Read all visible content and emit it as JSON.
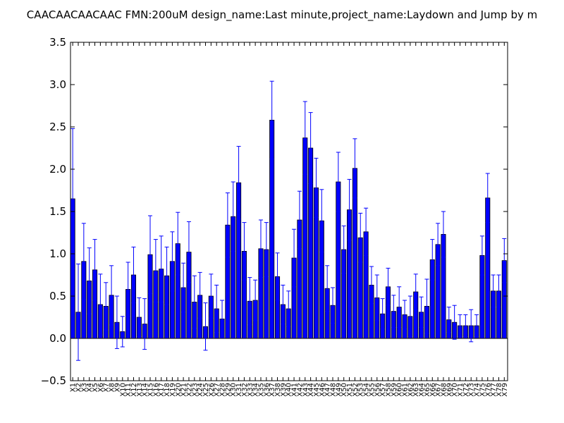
{
  "chart_data": {
    "type": "bar",
    "title": "CAACAACAACAAC  FMN:200uM  design_name:Last minute,project_name:Laydown and Jump by m",
    "xlabel": "",
    "ylabel": "",
    "ylim": [
      -0.5,
      3.5
    ],
    "yticks": [
      "−0.5",
      "0.0",
      "0.5",
      "1.0",
      "1.5",
      "2.0",
      "2.5",
      "3.0",
      "3.5"
    ],
    "ytick_values": [
      -0.5,
      0.0,
      0.5,
      1.0,
      1.5,
      2.0,
      2.5,
      3.0,
      3.5
    ],
    "grid": false,
    "legend": "none",
    "bar_color": "#0000ff",
    "error_color": "#0000ff",
    "categories": [
      "X1",
      "X2",
      "X3",
      "X4",
      "X5",
      "X6",
      "X7",
      "X8",
      "X9",
      "X10",
      "X11",
      "X12",
      "X13",
      "X14",
      "X15",
      "X16",
      "X17",
      "X18",
      "X19",
      "X20",
      "X21",
      "X22",
      "X23",
      "X24",
      "X25",
      "X26",
      "X27",
      "X28",
      "X29",
      "X30",
      "X31",
      "X32",
      "X33",
      "X34",
      "X35",
      "X36",
      "X37",
      "X38",
      "X39",
      "X40",
      "X41",
      "X42",
      "X43",
      "X44",
      "X45",
      "X46",
      "X47",
      "X48",
      "X49",
      "X50",
      "X51",
      "X52",
      "X53",
      "X54",
      "X55",
      "X56",
      "X57",
      "X58",
      "X59",
      "X60",
      "X61",
      "X62",
      "X63",
      "X64",
      "X65",
      "X66",
      "X67",
      "X68",
      "X69",
      "X70",
      "X71",
      "X72",
      "X73",
      "X74",
      "X75",
      "X76",
      "X77",
      "X78",
      "X79"
    ],
    "values": [
      1.65,
      0.31,
      0.91,
      0.68,
      0.81,
      0.4,
      0.38,
      0.51,
      0.19,
      0.08,
      0.58,
      0.75,
      0.25,
      0.17,
      0.99,
      0.8,
      0.82,
      0.74,
      0.91,
      1.12,
      0.6,
      1.02,
      0.43,
      0.51,
      0.14,
      0.5,
      0.35,
      0.23,
      1.34,
      1.44,
      1.84,
      1.03,
      0.44,
      0.45,
      1.06,
      1.05,
      2.58,
      0.73,
      0.4,
      0.35,
      0.95,
      1.4,
      2.37,
      2.25,
      1.78,
      1.39,
      0.59,
      0.39,
      1.85,
      1.05,
      1.52,
      2.01,
      1.19,
      1.26,
      0.63,
      0.48,
      0.29,
      0.61,
      0.32,
      0.37,
      0.28,
      0.26,
      0.55,
      0.31,
      0.38,
      0.93,
      1.11,
      1.23,
      0.22,
      0.19,
      0.15,
      0.15,
      0.15,
      0.15,
      0.98,
      1.66,
      0.56,
      0.56,
      0.92
    ],
    "errors": [
      0.83,
      0.57,
      0.45,
      0.39,
      0.36,
      0.36,
      0.28,
      0.35,
      0.31,
      0.18,
      0.32,
      0.33,
      0.23,
      0.3,
      0.46,
      0.37,
      0.39,
      0.34,
      0.35,
      0.37,
      0.29,
      0.36,
      0.31,
      0.27,
      0.28,
      0.26,
      0.28,
      0.22,
      0.38,
      0.41,
      0.43,
      0.34,
      0.28,
      0.24,
      0.34,
      0.32,
      0.46,
      0.28,
      0.23,
      0.21,
      0.34,
      0.34,
      0.43,
      0.42,
      0.35,
      0.37,
      0.27,
      0.21,
      0.35,
      0.28,
      0.36,
      0.35,
      0.29,
      0.28,
      0.22,
      0.27,
      0.18,
      0.22,
      0.19,
      0.24,
      0.17,
      0.24,
      0.21,
      0.18,
      0.32,
      0.24,
      0.25,
      0.27,
      0.15,
      0.2,
      0.13,
      0.13,
      0.19,
      0.13,
      0.23,
      0.29,
      0.19,
      0.19,
      0.26
    ]
  }
}
